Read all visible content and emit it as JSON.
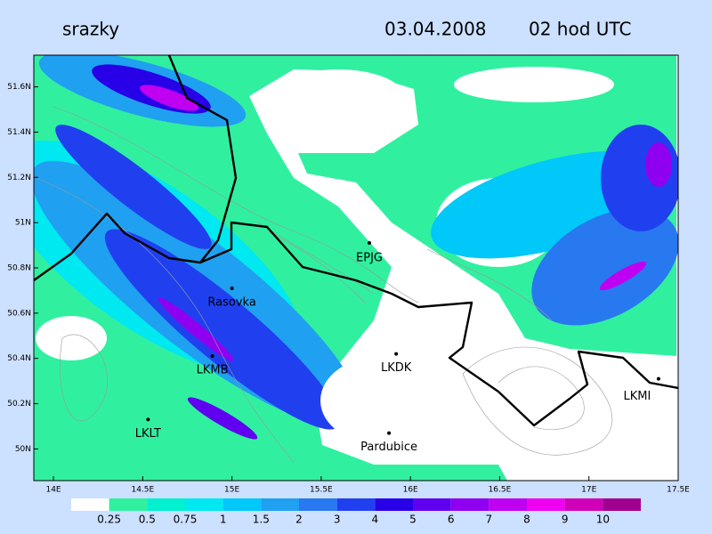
{
  "header": {
    "title": "srazky",
    "date": "03.04.2008",
    "time": "02 hod UTC"
  },
  "axes": {
    "xlim": [
      13.89,
      17.5
    ],
    "ylim": [
      49.86,
      51.74
    ],
    "xticks": [
      {
        "value": 14,
        "label": "14E"
      },
      {
        "value": 14.5,
        "label": "14.5E"
      },
      {
        "value": 15,
        "label": "15E"
      },
      {
        "value": 15.5,
        "label": "15.5E"
      },
      {
        "value": 16,
        "label": "16E"
      },
      {
        "value": 16.5,
        "label": "16.5E"
      },
      {
        "value": 17,
        "label": "17E"
      },
      {
        "value": 17.5,
        "label": "17.5E"
      }
    ],
    "yticks": [
      {
        "value": 50,
        "label": "50N"
      },
      {
        "value": 50.2,
        "label": "50.2N"
      },
      {
        "value": 50.4,
        "label": "50.4N"
      },
      {
        "value": 50.6,
        "label": "50.6N"
      },
      {
        "value": 50.8,
        "label": "50.8N"
      },
      {
        "value": 51,
        "label": "51N"
      },
      {
        "value": 51.2,
        "label": "51.2N"
      },
      {
        "value": 51.4,
        "label": "51.4N"
      },
      {
        "value": 51.6,
        "label": "51.6N"
      }
    ]
  },
  "stations": [
    {
      "name": "EPJG",
      "lon": 15.77,
      "lat": 50.91
    },
    {
      "name": "Rasovka",
      "lon": 15.0,
      "lat": 50.71
    },
    {
      "name": "LKMB",
      "lon": 14.89,
      "lat": 50.41
    },
    {
      "name": "LKDK",
      "lon": 15.92,
      "lat": 50.42
    },
    {
      "name": "LKLT",
      "lon": 14.53,
      "lat": 50.13
    },
    {
      "name": "Pardubice",
      "lon": 15.88,
      "lat": 50.07
    },
    {
      "name": "LKMI",
      "lon": 17.39,
      "lat": 50.31
    }
  ],
  "legend": {
    "levels": [
      0.25,
      0.5,
      0.75,
      1,
      1.5,
      2,
      3,
      4,
      5,
      6,
      7,
      8,
      9,
      10
    ],
    "colors": [
      "#ffffff",
      "#30f0a0",
      "#00f0d0",
      "#00e8f0",
      "#00c8f8",
      "#20a0f0",
      "#2878f0",
      "#2040f0",
      "#2800e8",
      "#6000f0",
      "#9000f0",
      "#c000f0",
      "#f000f0",
      "#d000b8",
      "#a00090"
    ]
  }
}
